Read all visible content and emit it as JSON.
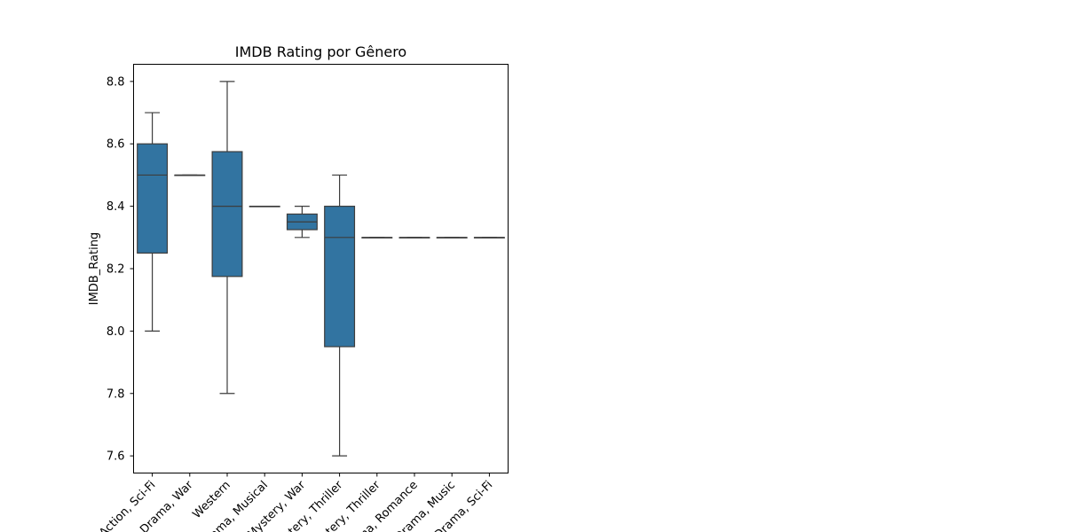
{
  "chart_data": {
    "type": "box",
    "title": "IMDB Rating por Gênero",
    "xlabel": "",
    "ylabel": "IMDB_Rating",
    "ylim": [
      7.545,
      8.855
    ],
    "yticks": [
      7.6,
      7.8,
      8.0,
      8.2,
      8.4,
      8.6,
      8.8
    ],
    "grid": false,
    "color": "#3274a1",
    "edge_color": "#3d3d3d",
    "categories": [
      "Action, Sci-Fi",
      "Drama, War",
      "Western",
      "Drama, Musical",
      "Mystery, War",
      "Mystery, Thriller",
      "Mystery, Thriller",
      "Drama, Romance",
      "Drama, Music",
      "Drama, Sci-Fi"
    ],
    "boxes": [
      {
        "whislo": 8.0,
        "q1": 8.25,
        "med": 8.5,
        "q3": 8.6,
        "whishi": 8.7
      },
      {
        "whislo": 8.5,
        "q1": 8.5,
        "med": 8.5,
        "q3": 8.5,
        "whishi": 8.5
      },
      {
        "whislo": 7.8,
        "q1": 8.175,
        "med": 8.4,
        "q3": 8.575,
        "whishi": 8.8
      },
      {
        "whislo": 8.4,
        "q1": 8.4,
        "med": 8.4,
        "q3": 8.4,
        "whishi": 8.4
      },
      {
        "whislo": 8.3,
        "q1": 8.325,
        "med": 8.35,
        "q3": 8.375,
        "whishi": 8.4
      },
      {
        "whislo": 7.6,
        "q1": 7.95,
        "med": 8.3,
        "q3": 8.4,
        "whishi": 8.5
      },
      {
        "whislo": 8.3,
        "q1": 8.3,
        "med": 8.3,
        "q3": 8.3,
        "whishi": 8.3
      },
      {
        "whislo": 8.3,
        "q1": 8.3,
        "med": 8.3,
        "q3": 8.3,
        "whishi": 8.3
      },
      {
        "whislo": 8.3,
        "q1": 8.3,
        "med": 8.3,
        "q3": 8.3,
        "whishi": 8.3
      },
      {
        "whislo": 8.3,
        "q1": 8.3,
        "med": 8.3,
        "q3": 8.3,
        "whishi": 8.3
      }
    ]
  }
}
